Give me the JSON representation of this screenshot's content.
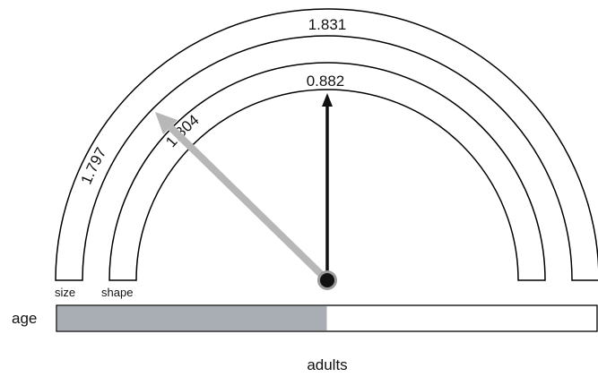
{
  "gauge": {
    "size_arc": {
      "label": "size",
      "value_left": "1.797",
      "value_top": "1.831"
    },
    "shape_arc": {
      "label": "shape",
      "value_left": "1.804",
      "value_top": "0.882"
    },
    "colors": {
      "outline": "#000000",
      "black_arrow": "#111111",
      "gray_arrow": "#b7b7b7",
      "pivot": "#111111",
      "pivot_ring": "#9a9a9a"
    }
  },
  "age_bar": {
    "label": "age",
    "fill_fraction": 0.5,
    "fill_color": "#a9adb4",
    "category": "adults"
  }
}
